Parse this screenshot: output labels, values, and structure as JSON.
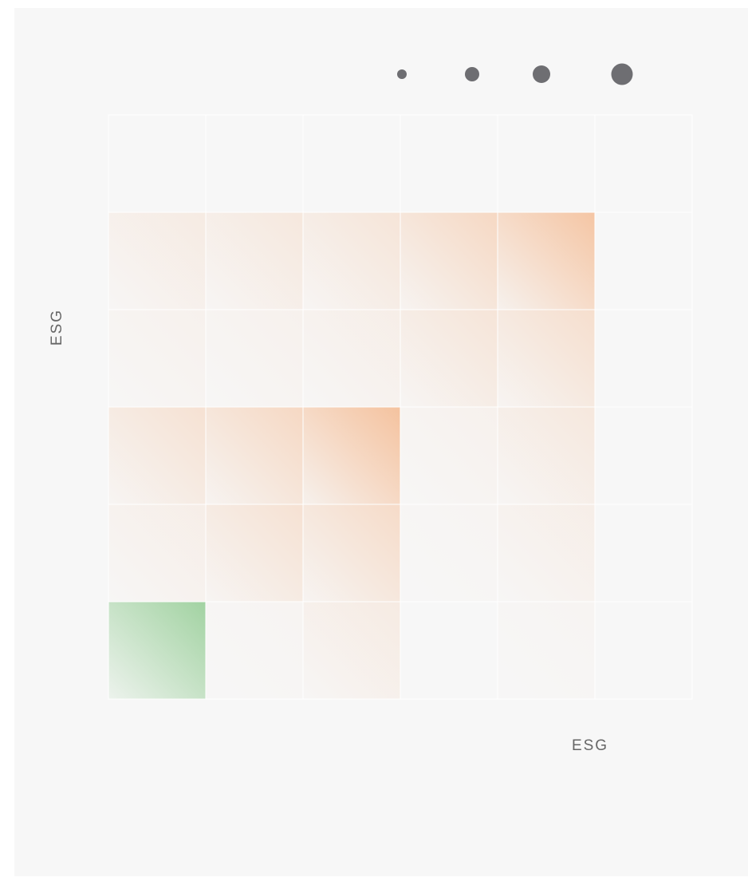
{
  "chart_data": {
    "type": "heatmap",
    "xlabel": "ESG",
    "ylabel": "ESG",
    "positive_color": "#f4b98f",
    "negative_color": "#8cc98c",
    "values": [
      [
        0,
        0,
        0,
        0,
        0,
        0
      ],
      [
        0.2,
        0.25,
        0.3,
        0.5,
        0.8,
        0
      ],
      [
        0.1,
        0.1,
        0.15,
        0.3,
        0.4,
        0
      ],
      [
        0.35,
        0.5,
        0.85,
        0.1,
        0.25,
        0
      ],
      [
        0.15,
        0.35,
        0.45,
        0.05,
        0.15,
        0
      ],
      [
        -0.8,
        0.05,
        0.2,
        0,
        0.05,
        0
      ]
    ]
  }
}
